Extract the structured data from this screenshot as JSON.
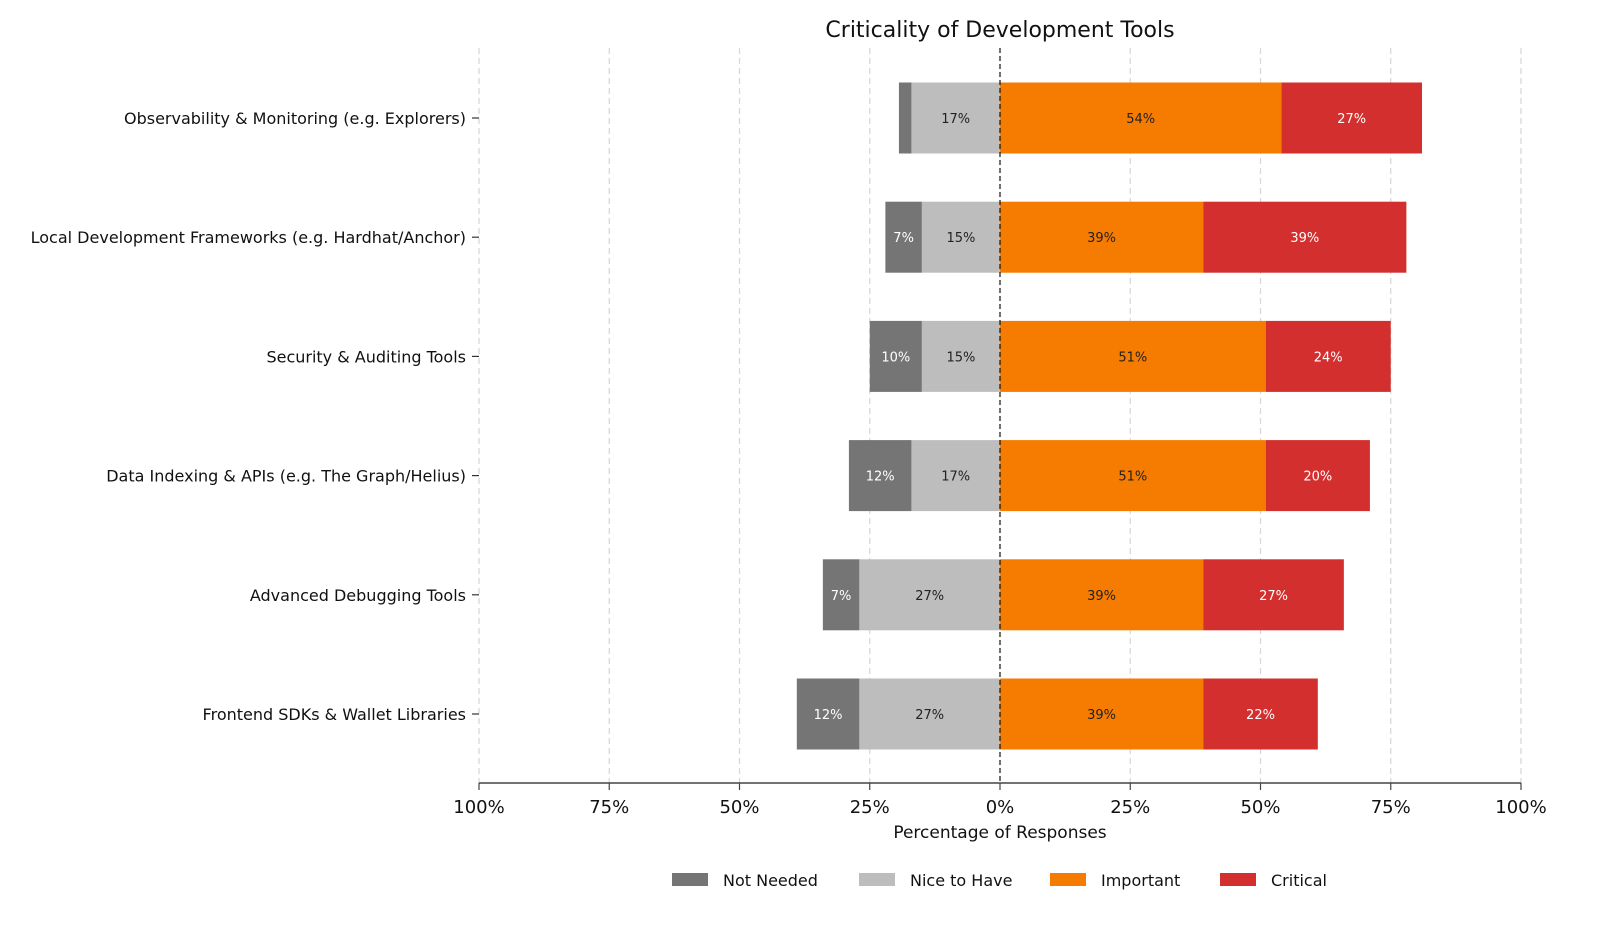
{
  "chart_data": {
    "type": "bar",
    "orientation": "horizontal",
    "stacking": "diverging",
    "title": "Criticality of Development Tools",
    "xlabel": "Percentage of Responses",
    "ylabel": "",
    "xlim": [
      -100,
      100
    ],
    "xticks": [
      -100,
      -75,
      -50,
      -25,
      0,
      25,
      50,
      75,
      100
    ],
    "xtick_labels": [
      "100%",
      "75%",
      "50%",
      "25%",
      "0%",
      "25%",
      "50%",
      "75%",
      "100%"
    ],
    "grid": "vertical dashed",
    "legend_position": "bottom-center",
    "categories": [
      "Observability & Monitoring (e.g. Explorers)",
      "Local Development Frameworks (e.g. Hardhat/Anchor)",
      "Security & Auditing Tools",
      "Data Indexing & APIs (e.g. The Graph/Helius)",
      "Advanced Debugging Tools",
      "Frontend SDKs & Wallet Libraries"
    ],
    "series": [
      {
        "name": "Not Needed",
        "side": "negative",
        "color": "#757575",
        "label_color": "#ffffff",
        "values": [
          2.4,
          7,
          10,
          12,
          7,
          12
        ],
        "labels": [
          "",
          "7%",
          "10%",
          "12%",
          "7%",
          "12%"
        ]
      },
      {
        "name": "Nice to Have",
        "side": "negative",
        "color": "#bdbdbd",
        "label_color": "#222222",
        "values": [
          17,
          15,
          15,
          17,
          27,
          27
        ],
        "labels": [
          "17%",
          "15%",
          "15%",
          "17%",
          "27%",
          "27%"
        ]
      },
      {
        "name": "Important",
        "side": "positive",
        "color": "#f57c00",
        "label_color": "#222222",
        "values": [
          54,
          39,
          51,
          51,
          39,
          39
        ],
        "labels": [
          "54%",
          "39%",
          "51%",
          "51%",
          "39%",
          "39%"
        ]
      },
      {
        "name": "Critical",
        "side": "positive",
        "color": "#d32f2f",
        "label_color": "#ffffff",
        "values": [
          27,
          39,
          24,
          20,
          27,
          22
        ],
        "labels": [
          "27%",
          "39%",
          "24%",
          "20%",
          "27%",
          "22%"
        ]
      }
    ]
  }
}
